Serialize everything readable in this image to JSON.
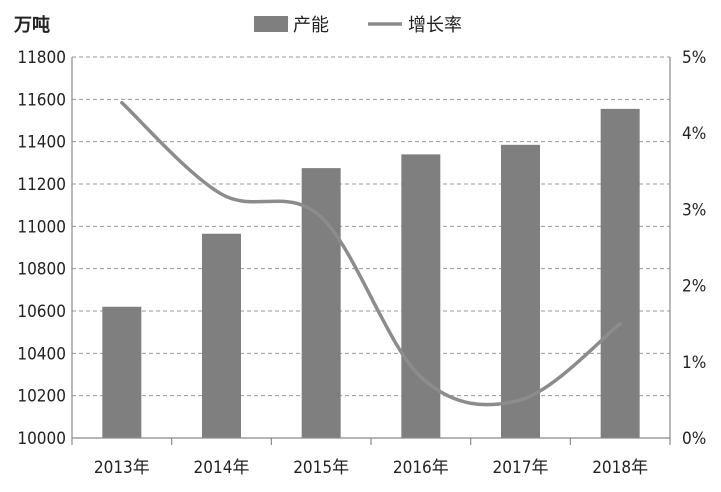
{
  "chart_data": {
    "type": "bar",
    "title": "",
    "y_unit": "万吨",
    "categories": [
      "2013年",
      "2014年",
      "2015年",
      "2016年",
      "2017年",
      "2018年"
    ],
    "series": [
      {
        "name": "产能",
        "type": "bar",
        "axis": "left",
        "color": "#7f7f7f",
        "values": [
          10620,
          10965,
          11275,
          11340,
          11385,
          11555
        ]
      },
      {
        "name": "增长率",
        "type": "line",
        "axis": "right",
        "color": "#8c8c8c",
        "values": [
          4.4,
          3.2,
          2.9,
          0.8,
          0.5,
          1.5
        ]
      }
    ],
    "y_left": {
      "min": 10000,
      "max": 11800,
      "ticks": [
        10000,
        10200,
        10400,
        10600,
        10800,
        11000,
        11200,
        11400,
        11600,
        11800
      ],
      "tick_labels": [
        "10000",
        "10200",
        "10400",
        "10600",
        "10800",
        "11000",
        "11200",
        "11400",
        "11600",
        "11800"
      ]
    },
    "y_right": {
      "min": 0,
      "max": 5,
      "ticks": [
        0,
        1,
        2,
        3,
        4,
        5
      ],
      "tick_labels": [
        "0%",
        "1%",
        "2%",
        "3%",
        "4%",
        "5%"
      ]
    },
    "grid": "horizontal-dashed",
    "legend_position": "top-center"
  }
}
